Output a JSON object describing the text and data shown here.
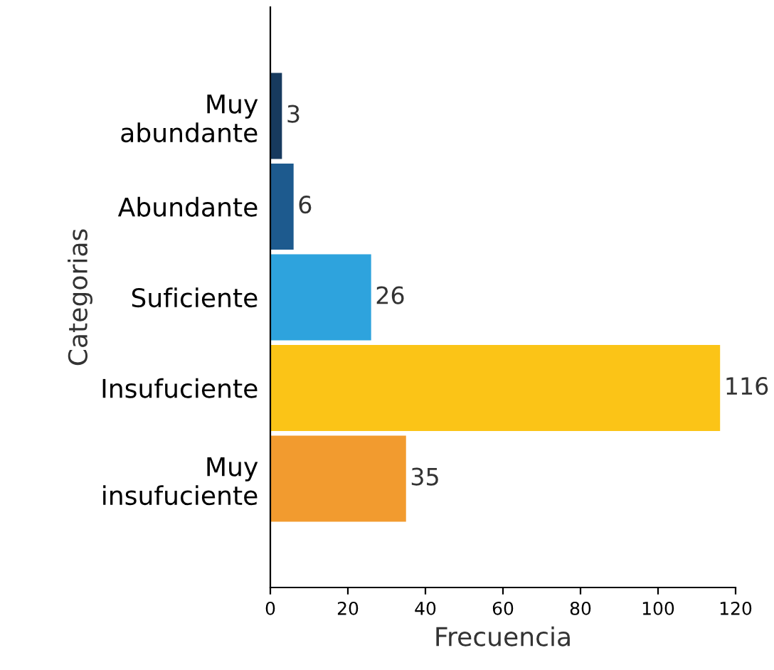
{
  "chart_data": {
    "type": "bar",
    "orientation": "horizontal",
    "xlabel": "Frecuencia",
    "ylabel": "Categorias",
    "categories": [
      "Muy\nabundante",
      "Abundante",
      "Suficiente",
      "Insufuciente",
      "Muy\ninsufuciente"
    ],
    "values": [
      3,
      6,
      26,
      116,
      35
    ],
    "colors": [
      "#173a5e",
      "#1d5a8e",
      "#2ea3dd",
      "#fbc417",
      "#f29b2f"
    ],
    "xlim": [
      0,
      120
    ],
    "xticks": [
      0,
      20,
      40,
      60,
      80,
      100,
      120
    ],
    "data_labels": true,
    "grid": false,
    "legend": false
  }
}
